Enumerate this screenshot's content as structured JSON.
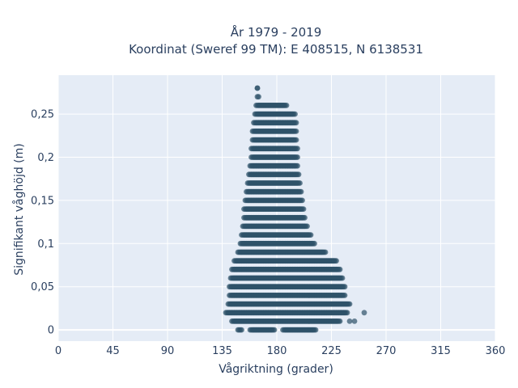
{
  "chart_data": {
    "type": "scatter",
    "title_line1": "År 1979 - 2019",
    "title_line2": "Koordinat (Sweref 99 TM): E 408515, N 6138531",
    "xlabel": "Vågriktning (grader)",
    "ylabel": "Signifikant våghöjd (m)",
    "xlim": [
      0,
      360
    ],
    "ylim": [
      -0.013,
      0.295
    ],
    "x_ticks": [
      0,
      45,
      90,
      135,
      180,
      225,
      270,
      315,
      360
    ],
    "x_tick_labels": [
      "0",
      "45",
      "90",
      "135",
      "180",
      "225",
      "270",
      "315",
      "360"
    ],
    "y_ticks": [
      0,
      0.05,
      0.1,
      0.15,
      0.2,
      0.25
    ],
    "y_tick_labels": [
      "0",
      "0,05",
      "0,1",
      "0,15",
      "0,2",
      "0,25"
    ],
    "grid": true,
    "marker_color": "#2f5269",
    "plot_bg": "#e5ecf6",
    "y_step": 0.01,
    "direction_ranges": [
      {
        "y": 0.0,
        "segments": [
          [
            148,
            151
          ],
          [
            158,
            178
          ],
          [
            185,
            212
          ]
        ]
      },
      {
        "y": 0.01,
        "segments": [
          [
            143,
            232
          ]
        ],
        "extra_x": [
          240,
          244
        ]
      },
      {
        "y": 0.02,
        "segments": [
          [
            138,
            238
          ]
        ],
        "extra_x": [
          252
        ]
      },
      {
        "y": 0.03,
        "segments": [
          [
            140,
            240
          ]
        ]
      },
      {
        "y": 0.04,
        "segments": [
          [
            141,
            236
          ]
        ]
      },
      {
        "y": 0.05,
        "segments": [
          [
            141,
            236
          ]
        ]
      },
      {
        "y": 0.06,
        "segments": [
          [
            142,
            234
          ]
        ]
      },
      {
        "y": 0.07,
        "segments": [
          [
            143,
            232
          ]
        ]
      },
      {
        "y": 0.08,
        "segments": [
          [
            145,
            229
          ]
        ]
      },
      {
        "y": 0.09,
        "segments": [
          [
            148,
            220
          ]
        ]
      },
      {
        "y": 0.1,
        "segments": [
          [
            150,
            211
          ]
        ]
      },
      {
        "y": 0.11,
        "segments": [
          [
            151,
            208
          ]
        ]
      },
      {
        "y": 0.12,
        "segments": [
          [
            152,
            205
          ]
        ]
      },
      {
        "y": 0.13,
        "segments": [
          [
            153,
            203
          ]
        ]
      },
      {
        "y": 0.14,
        "segments": [
          [
            153,
            202
          ]
        ]
      },
      {
        "y": 0.15,
        "segments": [
          [
            154,
            201
          ]
        ]
      },
      {
        "y": 0.16,
        "segments": [
          [
            155,
            200
          ]
        ]
      },
      {
        "y": 0.17,
        "segments": [
          [
            156,
            199
          ]
        ]
      },
      {
        "y": 0.18,
        "segments": [
          [
            157,
            198
          ]
        ]
      },
      {
        "y": 0.19,
        "segments": [
          [
            158,
            197
          ]
        ]
      },
      {
        "y": 0.2,
        "segments": [
          [
            159,
            197
          ]
        ]
      },
      {
        "y": 0.21,
        "segments": [
          [
            159,
            197
          ]
        ]
      },
      {
        "y": 0.22,
        "segments": [
          [
            160,
            196
          ]
        ]
      },
      {
        "y": 0.23,
        "segments": [
          [
            160,
            196
          ]
        ]
      },
      {
        "y": 0.24,
        "segments": [
          [
            161,
            196
          ]
        ]
      },
      {
        "y": 0.25,
        "segments": [
          [
            162,
            195
          ]
        ]
      },
      {
        "y": 0.26,
        "segments": [
          [
            163,
            188
          ]
        ]
      },
      {
        "y": 0.27,
        "segments": [
          [
            164,
            165
          ]
        ]
      },
      {
        "y": 0.28,
        "segments": [
          [
            164,
            164
          ]
        ]
      }
    ]
  }
}
